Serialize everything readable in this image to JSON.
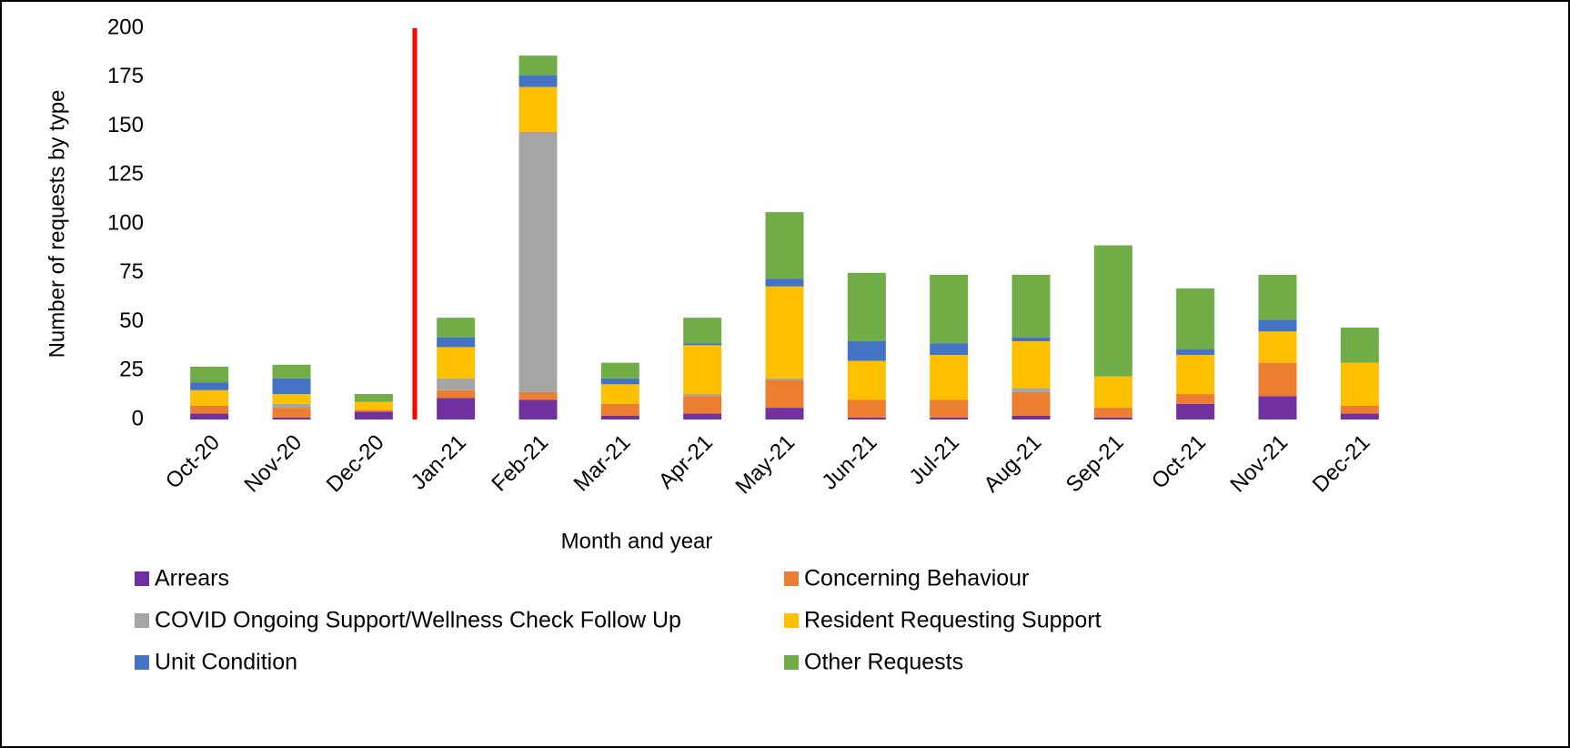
{
  "chart_data": {
    "type": "stacked_bar",
    "x_label": "Month and year",
    "y_label": "Number of requests by type",
    "categories": [
      "Oct-20",
      "Nov-20",
      "Dec-20",
      "Jan-21",
      "Feb-21",
      "Mar-21",
      "Apr-21",
      "May-21",
      "Jun-21",
      "Jul-21",
      "Aug-21",
      "Sep-21",
      "Oct-21",
      "Nov-21",
      "Dec-21"
    ],
    "series": [
      {
        "name": "Arrears",
        "color": "#7030a0",
        "values": [
          3,
          1,
          4,
          11,
          10,
          2,
          3,
          6,
          1,
          1,
          2,
          1,
          8,
          12,
          3
        ]
      },
      {
        "name": "Concerning Behaviour",
        "color": "#ed7d31",
        "values": [
          4,
          5,
          1,
          4,
          4,
          6,
          9,
          14,
          9,
          9,
          12,
          5,
          5,
          17,
          4
        ]
      },
      {
        "name": "COVID Ongoing Support/Wellness Check Follow Up",
        "color": "#a5a5a5",
        "values": [
          0,
          2,
          0,
          6,
          133,
          0,
          1,
          1,
          0,
          0,
          2,
          0,
          0,
          0,
          0
        ]
      },
      {
        "name": "Resident Requesting Support",
        "color": "#ffc000",
        "values": [
          8,
          5,
          4,
          16,
          23,
          10,
          25,
          47,
          20,
          23,
          24,
          16,
          20,
          16,
          22
        ]
      },
      {
        "name": "Unit Condition",
        "color": "#4472c4",
        "values": [
          4,
          8,
          0,
          5,
          6,
          3,
          1,
          4,
          10,
          6,
          2,
          0,
          3,
          6,
          0
        ]
      },
      {
        "name": "Other Requests",
        "color": "#70ad47",
        "values": [
          8,
          7,
          4,
          10,
          10,
          8,
          13,
          34,
          35,
          35,
          32,
          67,
          31,
          23,
          18
        ]
      }
    ],
    "ylim": [
      0,
      200
    ],
    "yticks": [
      0,
      25,
      50,
      75,
      100,
      125,
      150,
      175,
      200
    ],
    "grid": false
  }
}
